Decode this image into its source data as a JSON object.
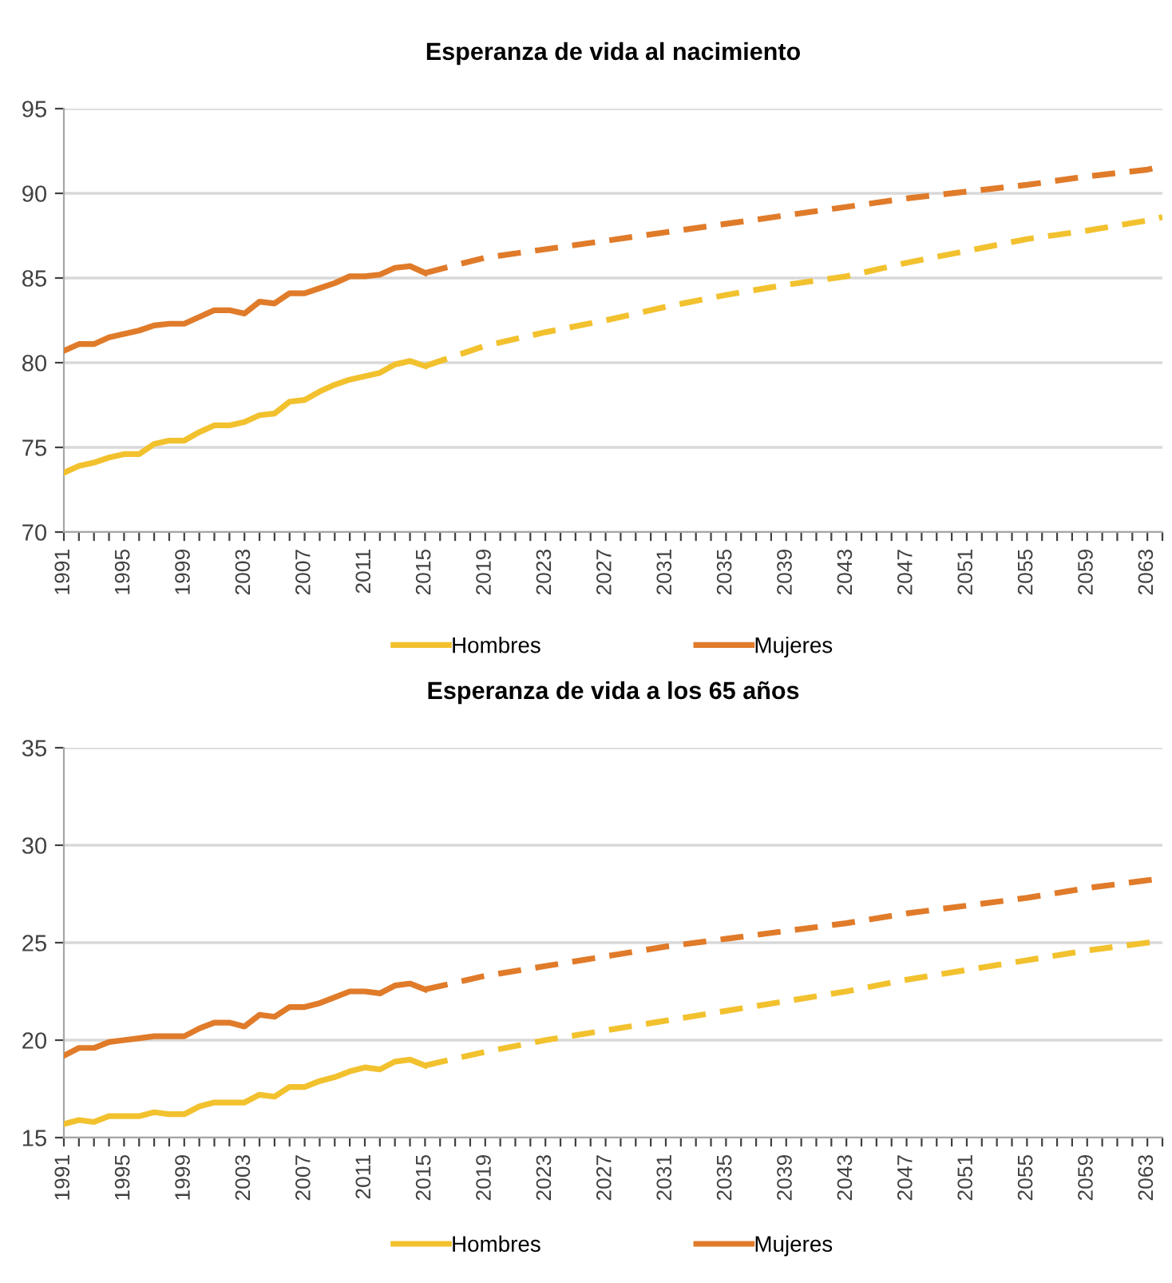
{
  "chart_data": [
    {
      "type": "line",
      "title": "Esperanza de vida al nacimiento",
      "xlim": [
        1991,
        2064
      ],
      "ylim": [
        70,
        95
      ],
      "yticks": [
        70,
        75,
        80,
        85,
        90,
        95
      ],
      "xticks": [
        1991,
        {
          "value": 1992,
          "label": null
        },
        {
          "value": 1993,
          "label": null
        },
        {
          "value": 1994,
          "label": null
        },
        1995,
        {
          "value": 1996,
          "label": null
        },
        {
          "value": 1997,
          "label": null
        },
        {
          "value": 1998,
          "label": null
        },
        1999,
        {
          "value": 2000,
          "label": null
        },
        {
          "value": 2001,
          "label": null
        },
        {
          "value": 2002,
          "label": null
        },
        2003,
        {
          "value": 2004,
          "label": null
        },
        {
          "value": 2005,
          "label": null
        },
        {
          "value": 2006,
          "label": null
        },
        2007,
        {
          "value": 2008,
          "label": null
        },
        {
          "value": 2009,
          "label": null
        },
        {
          "value": 2010,
          "label": null
        },
        2011,
        {
          "value": 2012,
          "label": null
        },
        {
          "value": 2013,
          "label": null
        },
        {
          "value": 2014,
          "label": null
        },
        2015,
        {
          "value": 2016,
          "label": null
        },
        {
          "value": 2017,
          "label": null
        },
        {
          "value": 2018,
          "label": null
        },
        2019,
        {
          "value": 2020,
          "label": null
        },
        {
          "value": 2021,
          "label": null
        },
        {
          "value": 2022,
          "label": null
        },
        2023,
        {
          "value": 2024,
          "label": null
        },
        {
          "value": 2025,
          "label": null
        },
        {
          "value": 2026,
          "label": null
        },
        2027,
        {
          "value": 2028,
          "label": null
        },
        {
          "value": 2029,
          "label": null
        },
        {
          "value": 2030,
          "label": null
        },
        2031,
        {
          "value": 2032,
          "label": null
        },
        {
          "value": 2033,
          "label": null
        },
        {
          "value": 2034,
          "label": null
        },
        2035,
        {
          "value": 2036,
          "label": null
        },
        {
          "value": 2037,
          "label": null
        },
        {
          "value": 2038,
          "label": null
        },
        2039,
        {
          "value": 2040,
          "label": null
        },
        {
          "value": 2041,
          "label": null
        },
        {
          "value": 2042,
          "label": null
        },
        2043,
        {
          "value": 2044,
          "label": null
        },
        {
          "value": 2045,
          "label": null
        },
        {
          "value": 2046,
          "label": null
        },
        2047,
        {
          "value": 2048,
          "label": null
        },
        {
          "value": 2049,
          "label": null
        },
        {
          "value": 2050,
          "label": null
        },
        2051,
        {
          "value": 2052,
          "label": null
        },
        {
          "value": 2053,
          "label": null
        },
        {
          "value": 2054,
          "label": null
        },
        2055,
        {
          "value": 2056,
          "label": null
        },
        {
          "value": 2057,
          "label": null
        },
        {
          "value": 2058,
          "label": null
        },
        2059,
        {
          "value": 2060,
          "label": null
        },
        {
          "value": 2061,
          "label": null
        },
        {
          "value": 2062,
          "label": null
        },
        2063,
        {
          "value": 2064,
          "label": null
        }
      ],
      "grid": "y",
      "legend": "bottom",
      "marker": "none",
      "series": [
        {
          "name": "Hombres",
          "color": "#f2c12e",
          "line_style": "solid",
          "x": [
            1991,
            1992,
            1993,
            1994,
            1995,
            1996,
            1997,
            1998,
            1999,
            2000,
            2001,
            2002,
            2003,
            2004,
            2005,
            2006,
            2007,
            2008,
            2009,
            2010,
            2011,
            2012,
            2013,
            2014,
            2015
          ],
          "values": [
            73.5,
            73.9,
            74.1,
            74.4,
            74.6,
            74.6,
            75.2,
            75.4,
            75.4,
            75.9,
            76.3,
            76.3,
            76.5,
            76.9,
            77.0,
            77.7,
            77.8,
            78.3,
            78.7,
            79.0,
            79.2,
            79.4,
            79.9,
            80.1,
            79.8
          ]
        },
        {
          "name": "Mujeres",
          "color": "#e07b2a",
          "line_style": "solid",
          "x": [
            1991,
            1992,
            1993,
            1994,
            1995,
            1996,
            1997,
            1998,
            1999,
            2000,
            2001,
            2002,
            2003,
            2004,
            2005,
            2006,
            2007,
            2008,
            2009,
            2010,
            2011,
            2012,
            2013,
            2014,
            2015
          ],
          "values": [
            80.7,
            81.1,
            81.1,
            81.5,
            81.7,
            81.9,
            82.2,
            82.3,
            82.3,
            82.7,
            83.1,
            83.1,
            82.9,
            83.6,
            83.5,
            84.1,
            84.1,
            84.4,
            84.7,
            85.1,
            85.1,
            85.2,
            85.6,
            85.7,
            85.3
          ]
        },
        {
          "color": "#f2c12e",
          "line_style": "dashed",
          "x": [
            2015,
            2019,
            2023,
            2027,
            2031,
            2035,
            2039,
            2043,
            2047,
            2051,
            2055,
            2059,
            2063,
            2064
          ],
          "values": [
            79.8,
            81.0,
            81.8,
            82.5,
            83.3,
            84.0,
            84.6,
            85.1,
            85.9,
            86.6,
            87.3,
            87.8,
            88.4,
            88.6
          ]
        },
        {
          "color": "#e07b2a",
          "line_style": "dashed",
          "x": [
            2015,
            2019,
            2023,
            2027,
            2031,
            2035,
            2039,
            2043,
            2047,
            2051,
            2055,
            2059,
            2063,
            2064
          ],
          "values": [
            85.3,
            86.2,
            86.7,
            87.2,
            87.7,
            88.2,
            88.7,
            89.2,
            89.7,
            90.1,
            90.5,
            91.0,
            91.4,
            91.6
          ]
        }
      ]
    },
    {
      "type": "line",
      "title": "Esperanza de vida a los 65 años",
      "xlim": [
        1991,
        2064
      ],
      "ylim": [
        15,
        35
      ],
      "yticks": [
        15,
        20,
        25,
        30,
        35
      ],
      "xticks": [
        1991,
        {
          "value": 1992,
          "label": null
        },
        {
          "value": 1993,
          "label": null
        },
        {
          "value": 1994,
          "label": null
        },
        1995,
        {
          "value": 1996,
          "label": null
        },
        {
          "value": 1997,
          "label": null
        },
        {
          "value": 1998,
          "label": null
        },
        1999,
        {
          "value": 2000,
          "label": null
        },
        {
          "value": 2001,
          "label": null
        },
        {
          "value": 2002,
          "label": null
        },
        2003,
        {
          "value": 2004,
          "label": null
        },
        {
          "value": 2005,
          "label": null
        },
        {
          "value": 2006,
          "label": null
        },
        2007,
        {
          "value": 2008,
          "label": null
        },
        {
          "value": 2009,
          "label": null
        },
        {
          "value": 2010,
          "label": null
        },
        2011,
        {
          "value": 2012,
          "label": null
        },
        {
          "value": 2013,
          "label": null
        },
        {
          "value": 2014,
          "label": null
        },
        2015,
        {
          "value": 2016,
          "label": null
        },
        {
          "value": 2017,
          "label": null
        },
        {
          "value": 2018,
          "label": null
        },
        2019,
        {
          "value": 2020,
          "label": null
        },
        {
          "value": 2021,
          "label": null
        },
        {
          "value": 2022,
          "label": null
        },
        2023,
        {
          "value": 2024,
          "label": null
        },
        {
          "value": 2025,
          "label": null
        },
        {
          "value": 2026,
          "label": null
        },
        2027,
        {
          "value": 2028,
          "label": null
        },
        {
          "value": 2029,
          "label": null
        },
        {
          "value": 2030,
          "label": null
        },
        2031,
        {
          "value": 2032,
          "label": null
        },
        {
          "value": 2033,
          "label": null
        },
        {
          "value": 2034,
          "label": null
        },
        2035,
        {
          "value": 2036,
          "label": null
        },
        {
          "value": 2037,
          "label": null
        },
        {
          "value": 2038,
          "label": null
        },
        2039,
        {
          "value": 2040,
          "label": null
        },
        {
          "value": 2041,
          "label": null
        },
        {
          "value": 2042,
          "label": null
        },
        2043,
        {
          "value": 2044,
          "label": null
        },
        {
          "value": 2045,
          "label": null
        },
        {
          "value": 2046,
          "label": null
        },
        2047,
        {
          "value": 2048,
          "label": null
        },
        {
          "value": 2049,
          "label": null
        },
        {
          "value": 2050,
          "label": null
        },
        2051,
        {
          "value": 2052,
          "label": null
        },
        {
          "value": 2053,
          "label": null
        },
        {
          "value": 2054,
          "label": null
        },
        2055,
        {
          "value": 2056,
          "label": null
        },
        {
          "value": 2057,
          "label": null
        },
        {
          "value": 2058,
          "label": null
        },
        2059,
        {
          "value": 2060,
          "label": null
        },
        {
          "value": 2061,
          "label": null
        },
        {
          "value": 2062,
          "label": null
        },
        2063,
        {
          "value": 2064,
          "label": null
        }
      ],
      "grid": "y",
      "legend": "bottom",
      "marker": "none",
      "series": [
        {
          "name": "Hombres",
          "color": "#f2c12e",
          "line_style": "solid",
          "x": [
            1991,
            1992,
            1993,
            1994,
            1995,
            1996,
            1997,
            1998,
            1999,
            2000,
            2001,
            2002,
            2003,
            2004,
            2005,
            2006,
            2007,
            2008,
            2009,
            2010,
            2011,
            2012,
            2013,
            2014,
            2015
          ],
          "values": [
            15.7,
            15.9,
            15.8,
            16.1,
            16.1,
            16.1,
            16.3,
            16.2,
            16.2,
            16.6,
            16.8,
            16.8,
            16.8,
            17.2,
            17.1,
            17.6,
            17.6,
            17.9,
            18.1,
            18.4,
            18.6,
            18.5,
            18.9,
            19.0,
            18.7
          ]
        },
        {
          "name": "Mujeres",
          "color": "#e07b2a",
          "line_style": "solid",
          "x": [
            1991,
            1992,
            1993,
            1994,
            1995,
            1996,
            1997,
            1998,
            1999,
            2000,
            2001,
            2002,
            2003,
            2004,
            2005,
            2006,
            2007,
            2008,
            2009,
            2010,
            2011,
            2012,
            2013,
            2014,
            2015
          ],
          "values": [
            19.2,
            19.6,
            19.6,
            19.9,
            20.0,
            20.1,
            20.2,
            20.2,
            20.2,
            20.6,
            20.9,
            20.9,
            20.7,
            21.3,
            21.2,
            21.7,
            21.7,
            21.9,
            22.2,
            22.5,
            22.5,
            22.4,
            22.8,
            22.9,
            22.6
          ]
        },
        {
          "color": "#f2c12e",
          "line_style": "dashed",
          "x": [
            2015,
            2019,
            2023,
            2027,
            2031,
            2035,
            2039,
            2043,
            2047,
            2051,
            2055,
            2059,
            2063,
            2064
          ],
          "values": [
            18.7,
            19.4,
            20.0,
            20.5,
            21.0,
            21.5,
            22.0,
            22.5,
            23.1,
            23.6,
            24.1,
            24.6,
            25.0,
            25.1
          ]
        },
        {
          "color": "#e07b2a",
          "line_style": "dashed",
          "x": [
            2015,
            2019,
            2023,
            2027,
            2031,
            2035,
            2039,
            2043,
            2047,
            2051,
            2055,
            2059,
            2063,
            2064
          ],
          "values": [
            22.6,
            23.3,
            23.8,
            24.3,
            24.8,
            25.2,
            25.6,
            26.0,
            26.5,
            26.9,
            27.3,
            27.8,
            28.2,
            28.3
          ]
        }
      ]
    }
  ]
}
